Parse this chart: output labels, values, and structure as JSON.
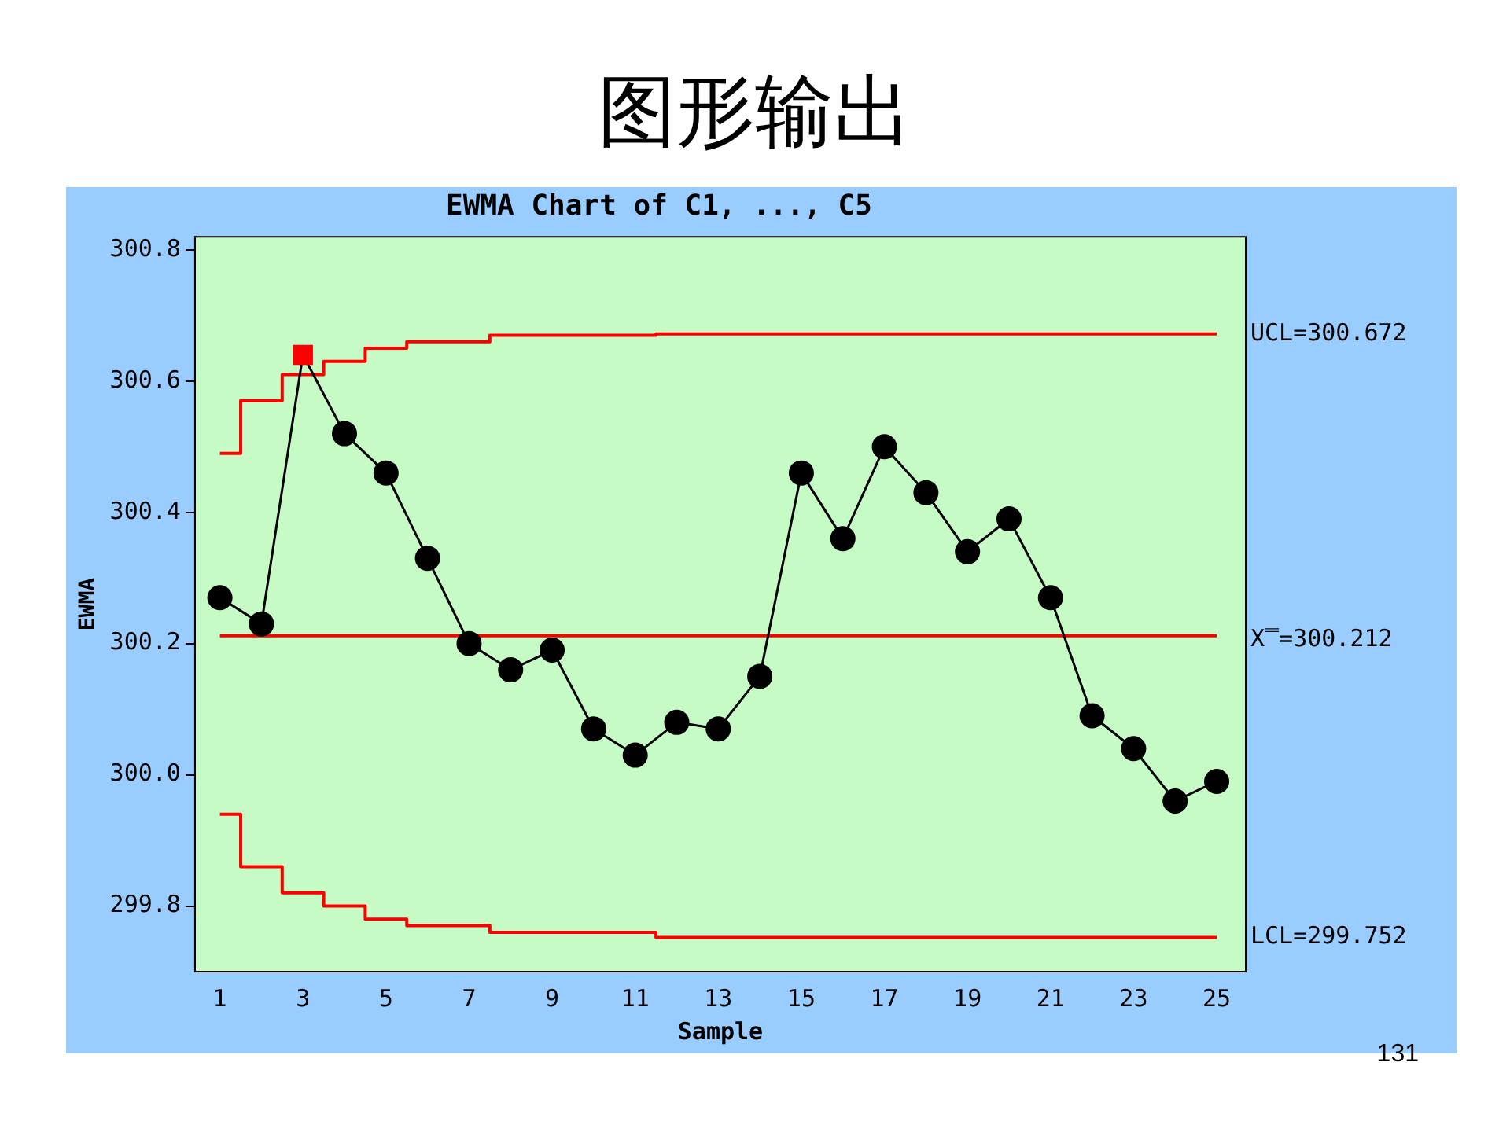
{
  "chart_data": {
    "type": "line",
    "title": "图形输出",
    "subtitle": "EWMA Chart of C1, ..., C5",
    "xlabel": "Sample",
    "ylabel": "EWMA",
    "x": [
      1,
      2,
      3,
      4,
      5,
      6,
      7,
      8,
      9,
      10,
      11,
      12,
      13,
      14,
      15,
      16,
      17,
      18,
      19,
      20,
      21,
      22,
      23,
      24,
      25
    ],
    "series": [
      {
        "color": "#000000",
        "marker": [
          "circle",
          "circle",
          "square",
          "circle",
          "circle",
          "circle",
          "circle",
          "circle",
          "circle",
          "circle",
          "circle",
          "circle",
          "circle",
          "circle",
          "circle",
          "circle",
          "circle",
          "circle",
          "circle",
          "circle",
          "circle",
          "circle",
          "circle",
          "circle",
          "circle"
        ],
        "colors": [
          "#000000",
          "#000000",
          "#ff0000",
          "#000000",
          "#000000",
          "#000000",
          "#000000",
          "#000000",
          "#000000",
          "#000000",
          "#000000",
          "#000000",
          "#000000",
          "#000000",
          "#000000",
          "#000000",
          "#000000",
          "#000000",
          "#000000",
          "#000000",
          "#000000",
          "#000000",
          "#000000",
          "#000000",
          "#000000"
        ],
        "values": [
          300.27,
          300.23,
          300.64,
          300.52,
          300.46,
          300.33,
          300.2,
          300.16,
          300.19,
          300.07,
          300.03,
          300.08,
          300.07,
          300.15,
          300.46,
          300.36,
          300.5,
          300.43,
          300.34,
          300.39,
          300.27,
          300.09,
          300.04,
          299.96,
          299.99
        ]
      },
      {
        "type": "step",
        "color": "#ff0000",
        "marker": "none",
        "values": [
          300.49,
          300.57,
          300.61,
          300.63,
          300.65,
          300.66,
          300.66,
          300.67,
          300.67,
          300.67,
          300.67,
          300.672,
          300.672,
          300.672,
          300.672,
          300.672,
          300.672,
          300.672,
          300.672,
          300.672,
          300.672,
          300.672,
          300.672,
          300.672,
          300.672
        ]
      },
      {
        "type": "step",
        "color": "#ff0000",
        "marker": "none",
        "values": [
          299.94,
          299.86,
          299.82,
          299.8,
          299.78,
          299.77,
          299.77,
          299.76,
          299.76,
          299.76,
          299.76,
          299.752,
          299.752,
          299.752,
          299.752,
          299.752,
          299.752,
          299.752,
          299.752,
          299.752,
          299.752,
          299.752,
          299.752,
          299.752,
          299.752
        ]
      }
    ],
    "xlim": [
      0.4,
      25.7
    ],
    "xticks": [
      1,
      3,
      5,
      7,
      9,
      11,
      13,
      15,
      17,
      19,
      21,
      23,
      25
    ],
    "ylim": [
      299.7,
      300.82
    ],
    "yticks": [
      {
        "value": 299.8,
        "label": "299.8"
      },
      {
        "value": 300,
        "label": "300.0"
      },
      {
        "value": 300.2,
        "label": "300.2"
      },
      {
        "value": 300.4,
        "label": "300.4"
      },
      {
        "value": 300.6,
        "label": "300.6"
      },
      {
        "value": 300.8,
        "label": "300.8"
      }
    ],
    "ref_lines": [
      {
        "axis": "y",
        "value": 300.212,
        "label": "X̿=300.212",
        "color": "#ff0000"
      }
    ],
    "annotations": [
      {
        "text": "UCL=300.672",
        "x": 25,
        "y": 300.672
      },
      {
        "text": "LCL=299.752",
        "x": 25,
        "y": 299.752
      },
      "131"
    ],
    "grid": false,
    "legend": false
  }
}
